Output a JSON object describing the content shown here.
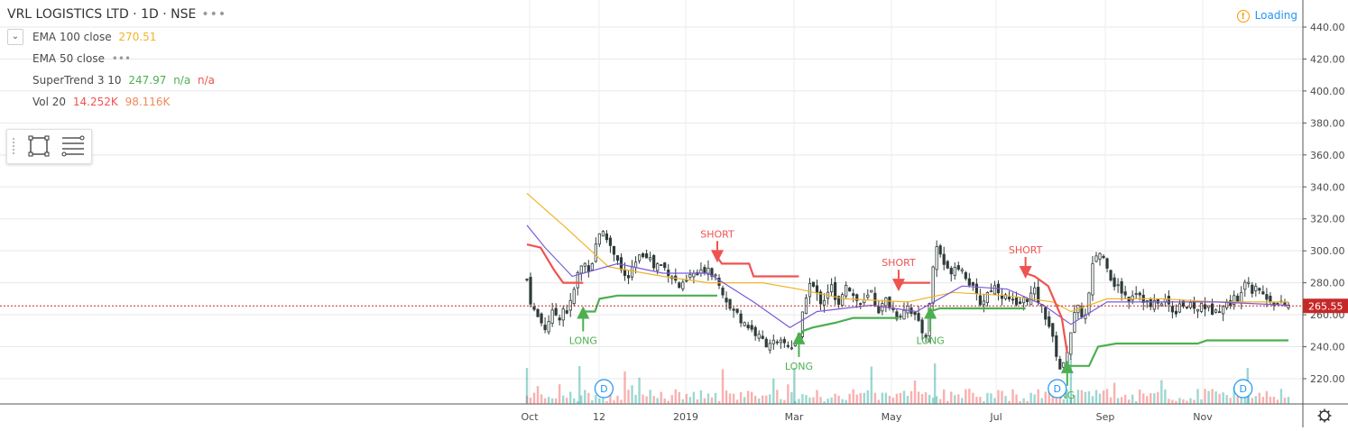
{
  "header": {
    "symbol_title": "VRL LOGISTICS LTD · 1D · NSE",
    "more_dots": "•••",
    "collapse_icon": "chevron-down"
  },
  "indicators": {
    "ema100": {
      "name": "EMA 100 close",
      "value": "270.51",
      "color": "#f0b429"
    },
    "ema50": {
      "name": "EMA 50 close",
      "value": "•••",
      "color": "#7b5bd6"
    },
    "supertrend": {
      "name": "SuperTrend 3 10",
      "value": "247.97",
      "v2": "n/a",
      "v3": "n/a",
      "up_color": "#4caf50",
      "down_color": "#ef5350"
    },
    "volume": {
      "name": "Vol 20",
      "value": "14.252K",
      "v2": "98.116K"
    }
  },
  "status": {
    "loading_text": "Loading",
    "warning_icon": "!"
  },
  "colors": {
    "up": "#26a69a",
    "down": "#ef5350",
    "grid": "#e8e8e8",
    "price_line": "#c62828"
  },
  "chart_data": {
    "type": "candlestick",
    "title": "VRL LOGISTICS LTD · 1D · NSE",
    "y_axis": {
      "min": 204,
      "max": 450,
      "ticks": [
        "440.00",
        "420.00",
        "400.00",
        "380.00",
        "360.00",
        "340.00",
        "320.00",
        "300.00",
        "280.00",
        "260.00",
        "240.00",
        "220.00"
      ]
    },
    "x_axis": {
      "labels": [
        "Oct",
        "12",
        "2019",
        "Mar",
        "May",
        "Jul",
        "Sep",
        "Nov"
      ]
    },
    "last_price": "265.55",
    "close_series": [
      [
        0,
        282
      ],
      [
        5,
        266
      ],
      [
        10,
        260
      ],
      [
        15,
        256
      ],
      [
        20,
        252
      ],
      [
        25,
        258
      ],
      [
        30,
        262
      ],
      [
        35,
        258
      ],
      [
        40,
        264
      ],
      [
        45,
        262
      ],
      [
        50,
        270
      ],
      [
        55,
        284
      ],
      [
        60,
        290
      ],
      [
        65,
        292
      ],
      [
        70,
        288
      ],
      [
        75,
        302
      ],
      [
        80,
        312
      ],
      [
        85,
        310
      ],
      [
        90,
        306
      ],
      [
        95,
        300
      ],
      [
        100,
        296
      ],
      [
        105,
        286
      ],
      [
        110,
        282
      ],
      [
        115,
        286
      ],
      [
        120,
        292
      ],
      [
        125,
        296
      ],
      [
        130,
        300
      ],
      [
        135,
        296
      ],
      [
        140,
        290
      ],
      [
        145,
        292
      ],
      [
        150,
        290
      ],
      [
        155,
        288
      ],
      [
        160,
        284
      ],
      [
        165,
        280
      ],
      [
        170,
        276
      ],
      [
        175,
        280
      ],
      [
        180,
        284
      ],
      [
        185,
        286
      ],
      [
        190,
        284
      ],
      [
        195,
        288
      ],
      [
        200,
        290
      ],
      [
        205,
        286
      ],
      [
        210,
        284
      ],
      [
        215,
        276
      ],
      [
        220,
        270
      ],
      [
        225,
        262
      ],
      [
        230,
        262
      ],
      [
        235,
        258
      ],
      [
        240,
        256
      ],
      [
        245,
        252
      ],
      [
        250,
        250
      ],
      [
        255,
        246
      ],
      [
        260,
        244
      ],
      [
        265,
        242
      ],
      [
        270,
        244
      ],
      [
        275,
        240
      ],
      [
        280,
        242
      ],
      [
        285,
        242
      ],
      [
        290,
        240
      ],
      [
        295,
        242
      ],
      [
        300,
        246
      ],
      [
        305,
        262
      ],
      [
        310,
        280
      ],
      [
        315,
        278
      ],
      [
        320,
        272
      ],
      [
        325,
        268
      ],
      [
        330,
        272
      ],
      [
        335,
        280
      ],
      [
        340,
        268
      ],
      [
        345,
        264
      ],
      [
        350,
        282
      ],
      [
        355,
        278
      ],
      [
        360,
        272
      ],
      [
        365,
        268
      ],
      [
        370,
        266
      ],
      [
        375,
        270
      ],
      [
        380,
        274
      ],
      [
        385,
        266
      ],
      [
        390,
        262
      ],
      [
        395,
        270
      ],
      [
        400,
        266
      ],
      [
        405,
        262
      ],
      [
        410,
        258
      ],
      [
        415,
        264
      ],
      [
        420,
        266
      ],
      [
        425,
        262
      ],
      [
        430,
        256
      ],
      [
        435,
        250
      ],
      [
        440,
        248
      ],
      [
        445,
        270
      ],
      [
        450,
        304
      ],
      [
        455,
        300
      ],
      [
        460,
        292
      ],
      [
        465,
        286
      ],
      [
        470,
        290
      ],
      [
        475,
        292
      ],
      [
        480,
        288
      ],
      [
        485,
        284
      ],
      [
        490,
        278
      ],
      [
        495,
        272
      ],
      [
        500,
        268
      ],
      [
        505,
        270
      ],
      [
        510,
        276
      ],
      [
        515,
        278
      ],
      [
        520,
        276
      ],
      [
        525,
        272
      ],
      [
        530,
        270
      ],
      [
        535,
        268
      ],
      [
        540,
        264
      ],
      [
        545,
        268
      ],
      [
        550,
        270
      ],
      [
        555,
        272
      ],
      [
        560,
        274
      ],
      [
        565,
        268
      ],
      [
        570,
        262
      ],
      [
        575,
        256
      ],
      [
        580,
        244
      ],
      [
        585,
        234
      ],
      [
        590,
        222
      ],
      [
        595,
        236
      ],
      [
        600,
        250
      ],
      [
        605,
        262
      ],
      [
        610,
        264
      ],
      [
        615,
        256
      ],
      [
        620,
        272
      ],
      [
        625,
        294
      ],
      [
        630,
        300
      ],
      [
        635,
        296
      ],
      [
        640,
        292
      ],
      [
        645,
        282
      ],
      [
        650,
        278
      ],
      [
        655,
        276
      ],
      [
        660,
        272
      ],
      [
        665,
        270
      ],
      [
        670,
        276
      ],
      [
        675,
        274
      ],
      [
        680,
        270
      ],
      [
        685,
        266
      ],
      [
        690,
        264
      ],
      [
        695,
        270
      ],
      [
        700,
        266
      ],
      [
        705,
        270
      ],
      [
        710,
        264
      ],
      [
        715,
        262
      ],
      [
        720,
        268
      ],
      [
        725,
        266
      ],
      [
        730,
        264
      ],
      [
        735,
        266
      ],
      [
        740,
        262
      ],
      [
        745,
        268
      ],
      [
        750,
        264
      ],
      [
        755,
        262
      ],
      [
        760,
        266
      ],
      [
        765,
        264
      ],
      [
        770,
        266
      ],
      [
        775,
        268
      ],
      [
        780,
        270
      ],
      [
        785,
        266
      ],
      [
        790,
        284
      ],
      [
        795,
        282
      ],
      [
        800,
        276
      ],
      [
        805,
        280
      ],
      [
        810,
        274
      ],
      [
        815,
        270
      ],
      [
        820,
        270
      ],
      [
        825,
        268
      ],
      [
        830,
        266
      ],
      [
        835,
        266
      ],
      [
        840,
        265.55
      ]
    ],
    "ema100_series": [
      [
        0,
        336
      ],
      [
        40,
        316
      ],
      [
        90,
        290
      ],
      [
        150,
        284
      ],
      [
        200,
        280
      ],
      [
        260,
        280
      ],
      [
        300,
        276
      ],
      [
        350,
        270
      ],
      [
        420,
        268
      ],
      [
        470,
        274
      ],
      [
        530,
        272
      ],
      [
        580,
        268
      ],
      [
        600,
        262
      ],
      [
        640,
        270
      ],
      [
        700,
        270
      ],
      [
        760,
        268
      ],
      [
        840,
        268
      ]
    ],
    "ema50_series": [
      [
        0,
        316
      ],
      [
        20,
        302
      ],
      [
        50,
        284
      ],
      [
        100,
        292
      ],
      [
        150,
        286
      ],
      [
        200,
        286
      ],
      [
        250,
        268
      ],
      [
        290,
        252
      ],
      [
        320,
        262
      ],
      [
        380,
        266
      ],
      [
        430,
        262
      ],
      [
        480,
        278
      ],
      [
        530,
        276
      ],
      [
        570,
        266
      ],
      [
        600,
        254
      ],
      [
        640,
        268
      ],
      [
        700,
        268
      ],
      [
        760,
        268
      ],
      [
        840,
        266
      ]
    ],
    "supertrend_segments": [
      {
        "trend": "down",
        "points": [
          [
            0,
            304
          ],
          [
            15,
            302
          ],
          [
            30,
            288
          ],
          [
            40,
            280
          ],
          [
            62,
            280
          ]
        ]
      },
      {
        "trend": "up",
        "points": [
          [
            62,
            262
          ],
          [
            75,
            262
          ],
          [
            80,
            270
          ],
          [
            100,
            272
          ],
          [
            210,
            272
          ]
        ]
      },
      {
        "trend": "down",
        "points": [
          [
            210,
            296
          ],
          [
            215,
            292
          ],
          [
            245,
            292
          ],
          [
            250,
            284
          ],
          [
            300,
            284
          ]
        ]
      },
      {
        "trend": "up",
        "points": [
          [
            300,
            246
          ],
          [
            305,
            250
          ],
          [
            315,
            252
          ],
          [
            340,
            255
          ],
          [
            360,
            258
          ],
          [
            410,
            258
          ]
        ]
      },
      {
        "trend": "down",
        "points": [
          [
            410,
            278
          ],
          [
            415,
            280
          ],
          [
            445,
            280
          ]
        ]
      },
      {
        "trend": "up",
        "points": [
          [
            445,
            262
          ],
          [
            455,
            264
          ],
          [
            550,
            264
          ]
        ]
      },
      {
        "trend": "down",
        "points": [
          [
            550,
            286
          ],
          [
            560,
            284
          ],
          [
            575,
            278
          ],
          [
            590,
            258
          ],
          [
            596,
            236
          ]
        ]
      },
      {
        "trend": "up",
        "points": [
          [
            596,
            228
          ],
          [
            620,
            228
          ],
          [
            630,
            240
          ],
          [
            650,
            242
          ],
          [
            740,
            242
          ],
          [
            750,
            244
          ],
          [
            840,
            244
          ]
        ]
      }
    ],
    "signals": [
      {
        "type": "LONG",
        "x": 62,
        "label": "LONG"
      },
      {
        "type": "SHORT",
        "x": 210,
        "label": "SHORT"
      },
      {
        "type": "LONG",
        "x": 300,
        "label": "LONG"
      },
      {
        "type": "SHORT",
        "x": 410,
        "label": "SHORT"
      },
      {
        "type": "LONG",
        "x": 445,
        "label": "LONG"
      },
      {
        "type": "SHORT",
        "x": 550,
        "label": "SHORT"
      },
      {
        "type": "LONG",
        "x": 596,
        "label": "NG"
      }
    ],
    "dividend_markers": [
      {
        "x": 85,
        "label": "D"
      },
      {
        "x": 585,
        "label": "D"
      },
      {
        "x": 790,
        "label": "D"
      }
    ]
  }
}
